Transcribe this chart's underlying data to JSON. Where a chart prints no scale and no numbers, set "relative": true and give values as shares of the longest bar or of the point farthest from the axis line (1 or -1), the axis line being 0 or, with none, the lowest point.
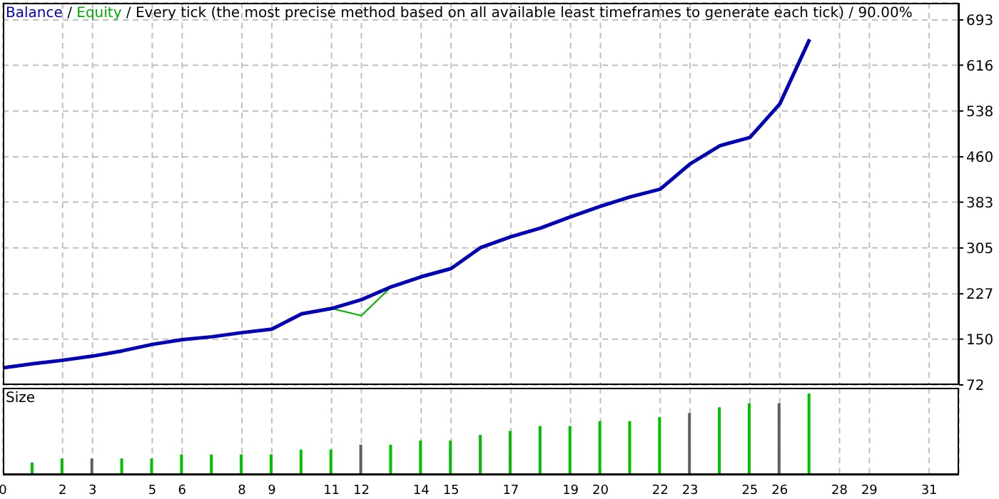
{
  "chart_data": [
    {
      "type": "line",
      "title": "/ Every tick (the most precise method based on all available least timeframes to generate each tick) / 90.00%",
      "annotations": [
        "/"
      ],
      "x": [
        0,
        1,
        2,
        3,
        4,
        5,
        6,
        7,
        8,
        9,
        10,
        11,
        12,
        13,
        14,
        15,
        16,
        17,
        18,
        19,
        20,
        21,
        22,
        23,
        24,
        25,
        26,
        27
      ],
      "series": [
        {
          "name": "Equity",
          "color": "#00b000",
          "values": [
            null,
            null,
            null,
            null,
            null,
            null,
            null,
            null,
            null,
            null,
            null,
            202,
            190,
            239,
            null,
            null,
            null,
            null,
            null,
            null,
            null,
            null,
            null,
            null,
            null,
            null,
            null,
            null
          ]
        },
        {
          "name": "Balance",
          "color": "#0000b4",
          "values": [
            101,
            108,
            114,
            121,
            130,
            141,
            149,
            154,
            161,
            167,
            193,
            202,
            217,
            239,
            256,
            270,
            306,
            324,
            339,
            358,
            376,
            392,
            405,
            448,
            479,
            493,
            550,
            660
          ]
        }
      ],
      "xlim": [
        0,
        32
      ],
      "xticks": [
        0,
        2,
        3,
        5,
        6,
        8,
        9,
        11,
        12,
        14,
        15,
        17,
        19,
        20,
        22,
        23,
        25,
        26,
        28,
        29,
        31
      ],
      "ylim": [
        72,
        722
      ],
      "yticks": [
        72,
        150,
        227,
        305,
        383,
        460,
        538,
        616,
        693
      ],
      "grid": true,
      "legend": "top left",
      "marker": "none",
      "line_style": "solid",
      "tick_labels": "y"
    },
    {
      "type": "bar",
      "title": "Size",
      "relative": true,
      "x": [
        1,
        2,
        3,
        4,
        5,
        6,
        7,
        8,
        9,
        10,
        11,
        12,
        13,
        14,
        15,
        16,
        17,
        18,
        19,
        20,
        21,
        22,
        23,
        24,
        25,
        26,
        27
      ],
      "values": [
        0.15,
        0.2,
        0.2,
        0.2,
        0.2,
        0.25,
        0.25,
        0.25,
        0.25,
        0.31,
        0.31,
        0.37,
        0.37,
        0.42,
        0.42,
        0.49,
        0.54,
        0.6,
        0.6,
        0.66,
        0.66,
        0.71,
        0.76,
        0.83,
        0.88,
        0.88,
        1
      ],
      "colors": [
        "#00c000",
        "#00c000",
        "#606060",
        "#00c000",
        "#00c000",
        "#00c000",
        "#00c000",
        "#00c000",
        "#00c000",
        "#00c000",
        "#00c000",
        "#606060",
        "#00c000",
        "#00c000",
        "#00c000",
        "#00c000",
        "#00c000",
        "#00c000",
        "#00c000",
        "#00c000",
        "#00c000",
        "#00c000",
        "#606060",
        "#00c000",
        "#00c000",
        "#606060",
        "#00c000"
      ],
      "xlim": [
        0,
        32
      ],
      "xticks": [
        0,
        2,
        3,
        5,
        6,
        8,
        9,
        11,
        12,
        14,
        15,
        17,
        19,
        20,
        22,
        23,
        25,
        26,
        28,
        29,
        31
      ],
      "grid": "x",
      "tick_labels": "x"
    }
  ]
}
